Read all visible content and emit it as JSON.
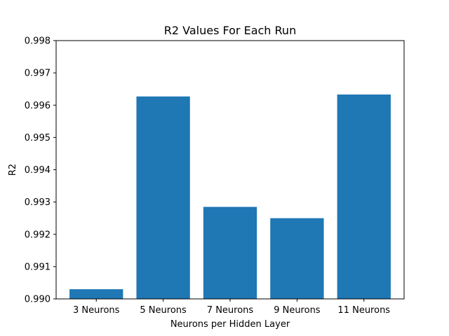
{
  "chart_data": {
    "type": "bar",
    "title": "R2 Values For Each Run",
    "xlabel": "Neurons per Hidden Layer",
    "ylabel": "R2",
    "categories": [
      "3 Neurons",
      "5 Neurons",
      "7 Neurons",
      "9 Neurons",
      "11 Neurons"
    ],
    "values": [
      0.9903,
      0.99627,
      0.99285,
      0.9925,
      0.99633
    ],
    "ylim": [
      0.99,
      0.998
    ],
    "yticks": [
      "0.990",
      "0.991",
      "0.992",
      "0.993",
      "0.994",
      "0.995",
      "0.996",
      "0.997",
      "0.998"
    ],
    "bar_color": "#1f77b4",
    "grid": false,
    "legend": "none"
  }
}
